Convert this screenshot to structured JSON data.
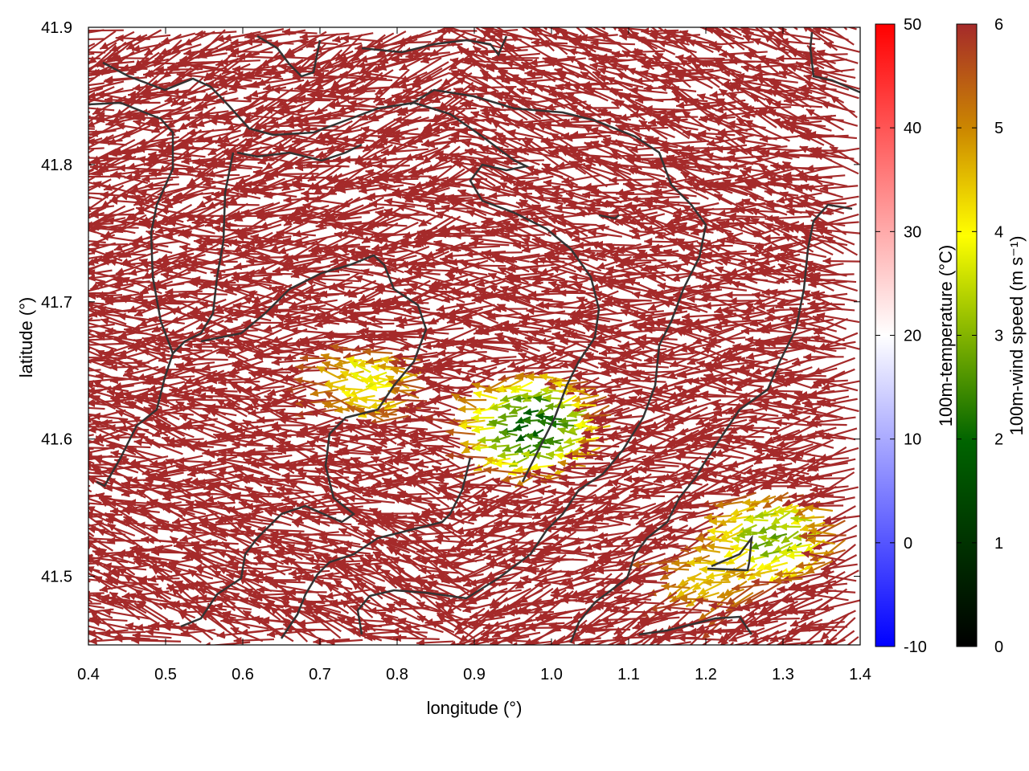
{
  "chart_data": {
    "type": "vector field",
    "xlabel": "longitude (°)",
    "ylabel": "latitude (°)",
    "xlim": [
      0.4,
      1.4
    ],
    "ylim": [
      41.45,
      41.9
    ],
    "x_ticks": [
      "0.4",
      "0.5",
      "0.6",
      "0.7",
      "0.8",
      "0.9",
      "1.0",
      "1.1",
      "1.2",
      "1.3",
      "1.4"
    ],
    "y_ticks": [
      "41.5",
      "41.6",
      "41.7",
      "41.8",
      "41.9"
    ],
    "temperature_colorbar": {
      "label": "100m-temperature (°C)",
      "range": [
        -10,
        50
      ],
      "ticks": [
        "-10",
        "0",
        "10",
        "20",
        "30",
        "40",
        "50"
      ],
      "colors": [
        "#0000ff",
        "#ffffff",
        "#ff0000"
      ]
    },
    "wind_colorbar": {
      "label": "100m-wind speed (m s⁻¹)",
      "range": [
        0,
        6
      ],
      "ticks": [
        "0",
        "1",
        "2",
        "3",
        "4",
        "5",
        "6"
      ],
      "colors": [
        "#000000",
        "#006400",
        "#ffff00",
        "#cc8800",
        "#a52a2a"
      ]
    },
    "dominant_wind_direction": "westward",
    "dominant_wind_color": "#a52a2a",
    "contour_color": "#333333",
    "low_wind_regions": [
      {
        "lon": 1.3,
        "lat": 41.53,
        "speed": 2.5
      },
      {
        "lon": 0.99,
        "lat": 41.61,
        "speed": 1.5
      },
      {
        "lon": 0.78,
        "lat": 41.64,
        "speed": 3.5
      },
      {
        "lon": 1.22,
        "lat": 41.5,
        "speed": 4.0
      }
    ]
  }
}
